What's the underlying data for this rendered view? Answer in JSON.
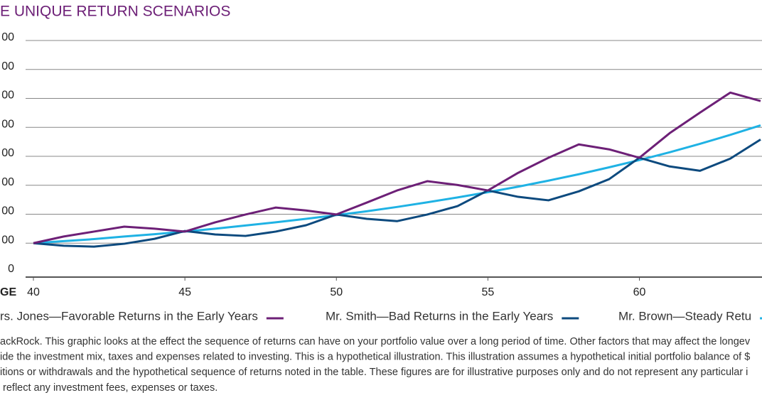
{
  "chart_data": {
    "type": "line",
    "title": "E UNIQUE RETURN SCENARIOS",
    "x_label": "GE",
    "x": [
      40,
      41,
      42,
      43,
      44,
      45,
      46,
      47,
      48,
      49,
      50,
      51,
      52,
      53,
      54,
      55,
      56,
      57,
      58,
      59,
      60,
      61,
      62,
      63,
      64
    ],
    "series": [
      {
        "name": "rs. Jones—Favorable Returns in the Early Years",
        "color": "#6d2077",
        "values": [
          100,
          123,
          140,
          157,
          150,
          140,
          172,
          199,
          223,
          213,
          199,
          240,
          282,
          314,
          301,
          282,
          343,
          395,
          441,
          424,
          395,
          480,
          551,
          620,
          591
        ]
      },
      {
        "name": "Mr. Smith—Bad Returns in the Early Years",
        "color": "#0d4a7e",
        "values": [
          100,
          91,
          88,
          98,
          115,
          142,
          130,
          125,
          140,
          162,
          199,
          184,
          176,
          199,
          228,
          282,
          260,
          248,
          279,
          321,
          395,
          365,
          350,
          392,
          458
        ]
      },
      {
        "name": "Mr. Brown—Steady Retu",
        "color": "#1fb2e4",
        "values": [
          100,
          107,
          114,
          123,
          131,
          140,
          150,
          161,
          172,
          184,
          197,
          210,
          225,
          241,
          258,
          276,
          295,
          316,
          338,
          362,
          387,
          414,
          443,
          474,
          507
        ]
      }
    ],
    "xlim": [
      40,
      64
    ],
    "xticks": [
      40,
      45,
      50,
      55,
      60
    ],
    "ylim": [
      0,
      800
    ],
    "yticks": [
      0,
      {
        "value": 100,
        "label": "00"
      },
      {
        "value": 200,
        "label": "00"
      },
      {
        "value": 300,
        "label": "00"
      },
      {
        "value": 400,
        "label": "00"
      },
      {
        "value": 500,
        "label": "00"
      },
      {
        "value": 600,
        "label": "00"
      },
      {
        "value": 700,
        "label": "00"
      },
      {
        "value": 800,
        "label": "00"
      }
    ],
    "grid": true,
    "footnote": [
      "ackRock. This graphic looks at the effect the sequence of returns can have on your portfolio value over a long period of time. Other factors that may affect the longev",
      "ide the investment mix, taxes and expenses related to investing. This is a hypothetical illustration. This illustration assumes a hypothetical initial portfolio balance of $",
      "itions or withdrawals and the hypothetical sequence of returns noted in the table. These figures are for illustrative purposes only and do not represent any particular i",
      " reflect any investment fees, expenses or taxes."
    ]
  }
}
